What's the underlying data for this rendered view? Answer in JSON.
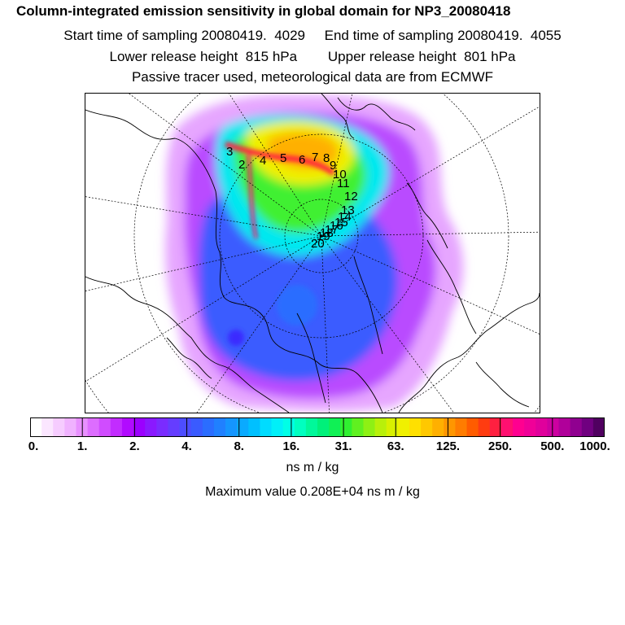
{
  "header": {
    "title": "Column-integrated emission sensitivity in global domain for NP3_20080418",
    "line2": "Start time of sampling 20080419.  4029     End time of sampling 20080419.  4055",
    "line3": "Lower release height  815 hPa        Upper release height  801 hPa",
    "line4": "Passive tracer used, meteorological data are from ECMWF"
  },
  "map": {
    "projection": "north polar stereographic",
    "track_labels": [
      "2",
      "3",
      "4",
      "5",
      "6",
      "7",
      "8",
      "9",
      "10",
      "11",
      "12",
      "13",
      "14",
      "15",
      "16",
      "17",
      "18",
      "19",
      "20"
    ]
  },
  "colorbar": {
    "tick_labels": [
      "0.",
      "1.",
      "2.",
      "4.",
      "8.",
      "16.",
      "31.",
      "63.",
      "125.",
      "250.",
      "500.",
      "1000."
    ],
    "colors": [
      "#ffffff",
      "#fbe6ff",
      "#f6ccff",
      "#f0b2ff",
      "#e890ff",
      "#dd6dff",
      "#d04cff",
      "#c22cff",
      "#b10bff",
      "#9b00ff",
      "#8a19ff",
      "#7a2cff",
      "#653dff",
      "#4d4dff",
      "#3a5bff",
      "#2b6dff",
      "#2080ff",
      "#1595ff",
      "#0aaaff",
      "#00c0ff",
      "#00dcff",
      "#00f0f8",
      "#00ffe6",
      "#00ffc0",
      "#00f89a",
      "#00f07a",
      "#10f055",
      "#30f030",
      "#60f020",
      "#8ef014",
      "#b8f00a",
      "#d8f000",
      "#f0f000",
      "#ffe000",
      "#ffc800",
      "#ffb000",
      "#ff9600",
      "#ff7c00",
      "#ff5c00",
      "#ff3c10",
      "#ff2040",
      "#ff1070",
      "#ff0090",
      "#f00098",
      "#e0009c",
      "#cc00a0",
      "#b0009a",
      "#900090",
      "#700080",
      "#500060"
    ],
    "unit": "ns m / kg",
    "max_value": "Maximum value  0.208E+04 ns m / kg"
  }
}
